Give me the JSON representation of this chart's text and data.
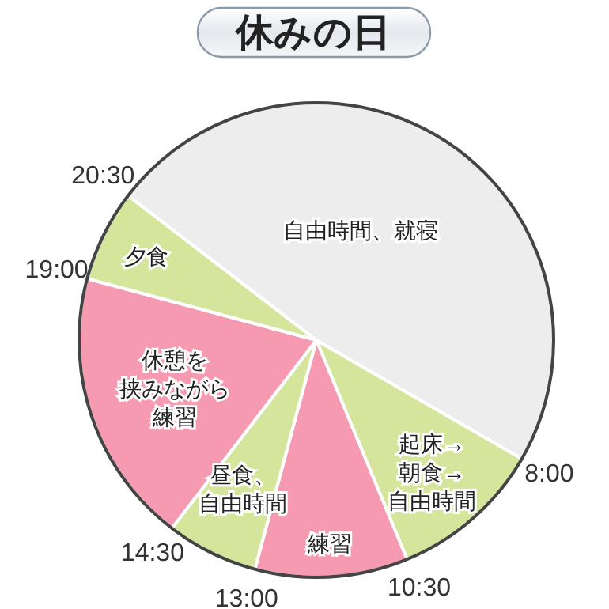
{
  "chart_data": {
    "type": "pie",
    "title": "休みの日",
    "categories": [
      "起床→朝食→自由時間",
      "練習",
      "昼食、自由時間",
      "休憩を挟みながら練習",
      "夕食",
      "自由時間、就寝"
    ],
    "values": [
      10.42,
      10.42,
      6.25,
      18.75,
      6.25,
      47.91
    ],
    "colors": [
      "#d6e59c",
      "#f59ab0",
      "#d6e59c",
      "#f59ab0",
      "#d6e59c",
      "#eeeded"
    ],
    "annotations": [
      "8:00",
      "10:30",
      "13:00",
      "14:30",
      "19:00",
      "20:30"
    ]
  }
}
